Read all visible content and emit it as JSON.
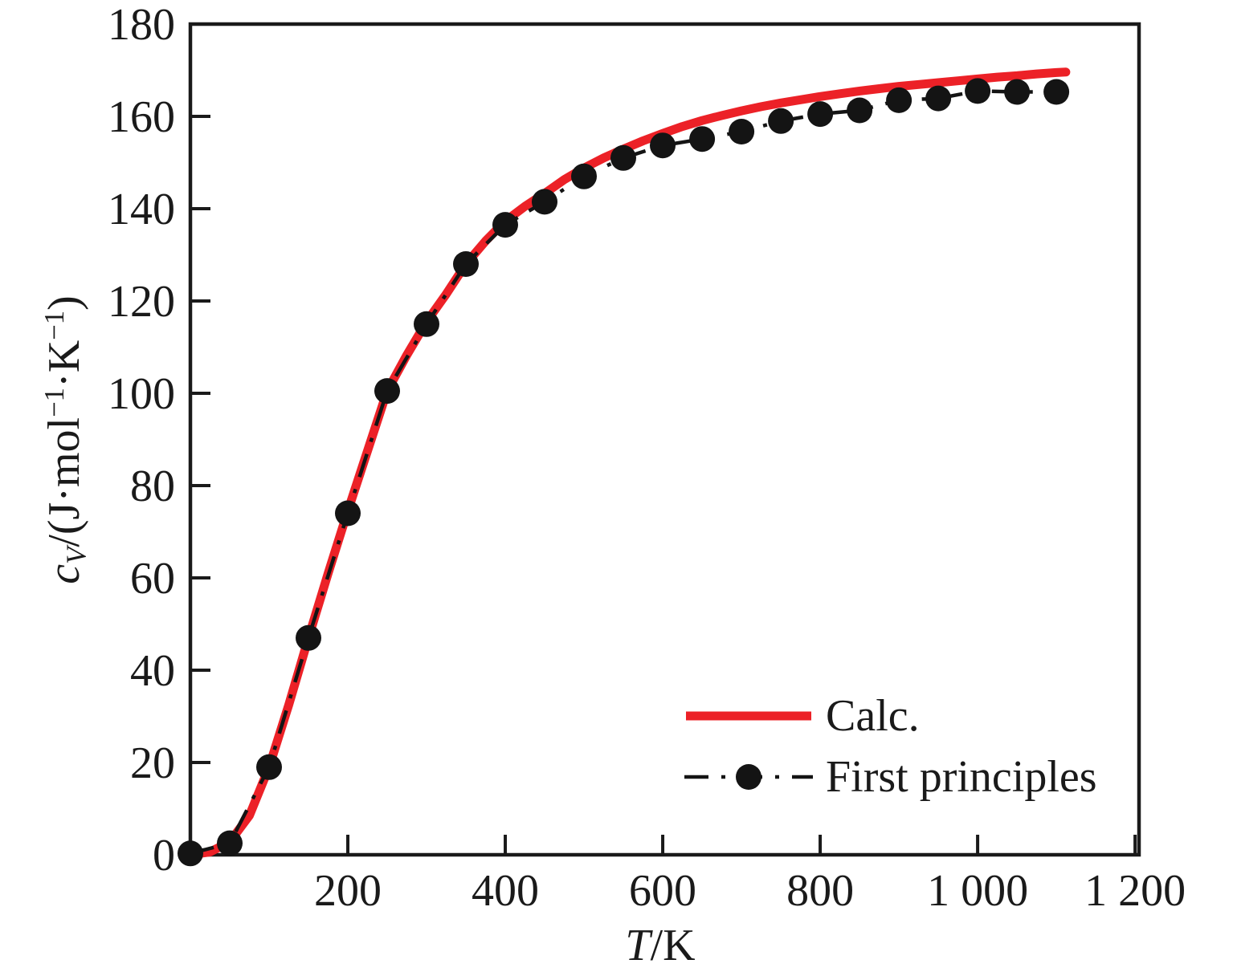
{
  "figure": {
    "background": "#ffffff",
    "text_color": "#1a1a1a"
  },
  "chart_data": {
    "type": "line",
    "title": "",
    "grid": false,
    "x_axis": {
      "label": {
        "sym": "T",
        "seg1": "/K"
      },
      "range": [
        0,
        1205
      ],
      "ticks": [
        {
          "v": 200,
          "label": "200"
        },
        {
          "v": 400,
          "label": "400"
        },
        {
          "v": 600,
          "label": "600"
        },
        {
          "v": 800,
          "label": "800"
        },
        {
          "v": 1000,
          "label": "1 000"
        },
        {
          "v": 1200,
          "label": "1 200"
        }
      ]
    },
    "y_axis": {
      "label": {
        "sym": "c",
        "sub": "V",
        "seg1": "/(J·mol",
        "sup1": "−1",
        "seg2": "·K",
        "sup2": "−1",
        "seg3": ")"
      },
      "range": [
        0,
        180
      ],
      "ticks": [
        {
          "v": 0,
          "label": "0"
        },
        {
          "v": 20,
          "label": "20"
        },
        {
          "v": 40,
          "label": "40"
        },
        {
          "v": 60,
          "label": "60"
        },
        {
          "v": 80,
          "label": "80"
        },
        {
          "v": 100,
          "label": "100"
        },
        {
          "v": 120,
          "label": "120"
        },
        {
          "v": 140,
          "label": "140"
        },
        {
          "v": 160,
          "label": "160"
        },
        {
          "v": 180,
          "label": "180"
        }
      ]
    },
    "legend": {
      "position": "lower-right"
    },
    "series": [
      {
        "name": "Calc.",
        "kind": "line",
        "color": "#ec2127",
        "line_width": 11,
        "points": [
          [
            0,
            0
          ],
          [
            25,
            0.6
          ],
          [
            50,
            2.8
          ],
          [
            75,
            8.5
          ],
          [
            100,
            19
          ],
          [
            125,
            32.5
          ],
          [
            150,
            47
          ],
          [
            175,
            61
          ],
          [
            200,
            74.5
          ],
          [
            225,
            87.5
          ],
          [
            250,
            100.5
          ],
          [
            275,
            108.3
          ],
          [
            300,
            115.5
          ],
          [
            325,
            121.5
          ],
          [
            350,
            128
          ],
          [
            375,
            133
          ],
          [
            400,
            137.3
          ],
          [
            425,
            140.5
          ],
          [
            450,
            143.3
          ],
          [
            475,
            146.3
          ],
          [
            500,
            148.8
          ],
          [
            525,
            151
          ],
          [
            550,
            152.9
          ],
          [
            575,
            154.7
          ],
          [
            600,
            156.3
          ],
          [
            625,
            157.8
          ],
          [
            650,
            159.1
          ],
          [
            675,
            160.2
          ],
          [
            700,
            161.2
          ],
          [
            725,
            162.1
          ],
          [
            750,
            162.9
          ],
          [
            775,
            163.6
          ],
          [
            800,
            164.3
          ],
          [
            825,
            164.9
          ],
          [
            850,
            165.5
          ],
          [
            875,
            166
          ],
          [
            900,
            166.5
          ],
          [
            925,
            166.9
          ],
          [
            950,
            167.3
          ],
          [
            975,
            167.7
          ],
          [
            1000,
            168.1
          ],
          [
            1025,
            168.5
          ],
          [
            1050,
            168.8
          ],
          [
            1075,
            169.2
          ],
          [
            1100,
            169.5
          ],
          [
            1112,
            169.6
          ]
        ]
      },
      {
        "name": "First principles",
        "kind": "dashdot-line-markers",
        "color": "#141414",
        "line_width": 4.5,
        "dash": [
          30,
          16,
          5,
          16
        ],
        "marker_radius": 16,
        "points": [
          [
            0,
            0.3
          ],
          [
            50,
            2.5
          ],
          [
            100,
            19
          ],
          [
            150,
            47
          ],
          [
            200,
            74
          ],
          [
            250,
            100.5
          ],
          [
            300,
            115
          ],
          [
            350,
            128
          ],
          [
            400,
            136.5
          ],
          [
            450,
            141.5
          ],
          [
            500,
            147
          ],
          [
            550,
            151
          ],
          [
            600,
            153.7
          ],
          [
            650,
            155.1
          ],
          [
            700,
            156.7
          ],
          [
            750,
            159
          ],
          [
            800,
            160.5
          ],
          [
            850,
            161.3
          ],
          [
            900,
            163.5
          ],
          [
            950,
            163.9
          ],
          [
            1000,
            165.5
          ],
          [
            1050,
            165.3
          ],
          [
            1100,
            165.3
          ]
        ]
      }
    ]
  }
}
